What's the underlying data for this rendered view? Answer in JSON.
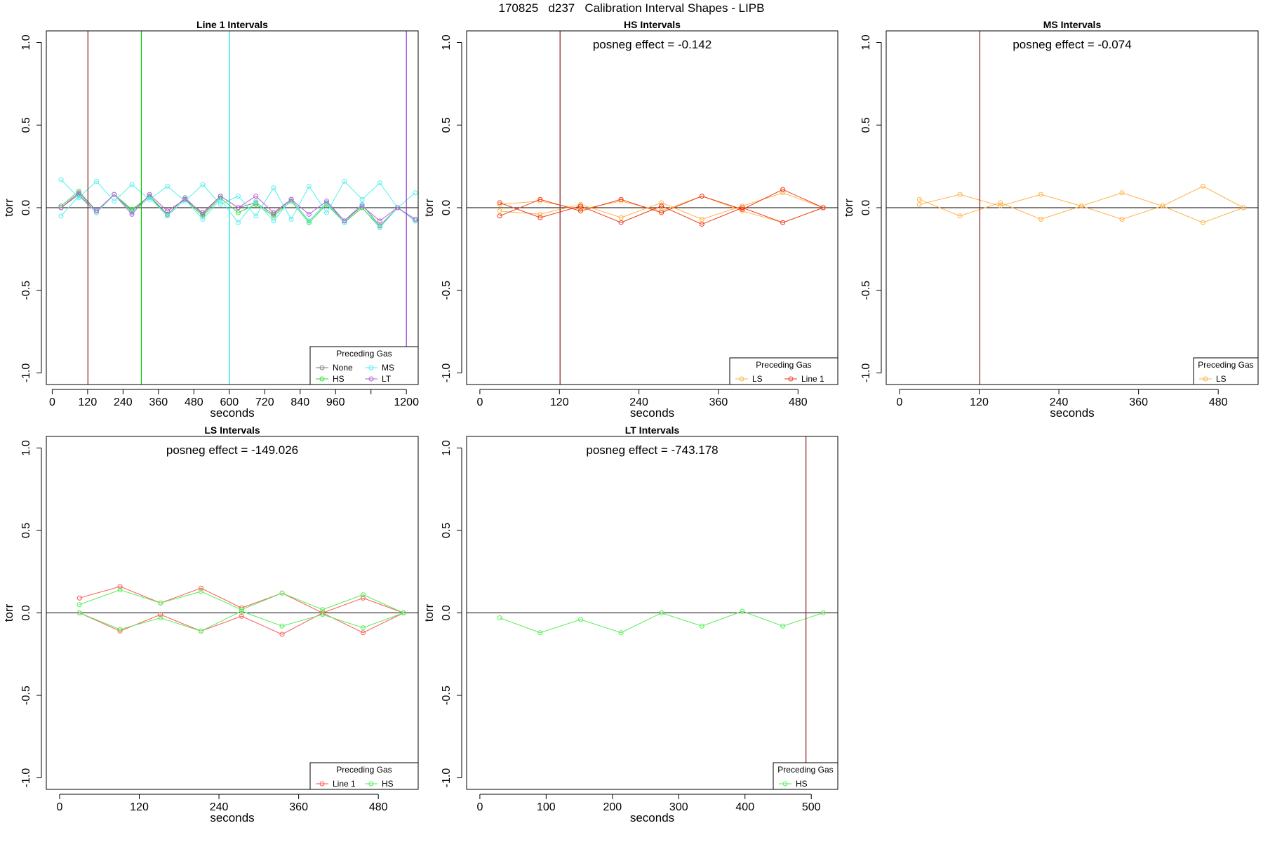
{
  "page_title": "170825   d237   Calibration Interval Shapes - LIPB",
  "chart_data": [
    {
      "type": "line",
      "title": "Line 1 Intervals",
      "annotation": "",
      "xlabel": "seconds",
      "ylabel": "torr",
      "xlim": [
        -20,
        1240
      ],
      "ylim": [
        -1.07,
        1.07
      ],
      "xticks": [
        0,
        120,
        240,
        360,
        480,
        600,
        720,
        840,
        960,
        1080,
        1200
      ],
      "xticklabels": [
        "0",
        "120",
        "240",
        "360",
        "480",
        "600",
        "720",
        "840",
        "960",
        "",
        "1200"
      ],
      "yticks": [
        -1.0,
        -0.5,
        0.0,
        0.5,
        1.0
      ],
      "yticklabels": [
        "-1.0",
        "-0.5",
        "0.0",
        "0.5",
        "1.0"
      ],
      "vlines": [
        {
          "x": 121,
          "color": "#8b1a1a"
        },
        {
          "x": 302,
          "color": "#00cc00"
        },
        {
          "x": 601,
          "color": "#00e5e5"
        },
        {
          "x": 1200,
          "color": "#9a32cd"
        }
      ],
      "legend": {
        "title": "Preceding Gas",
        "position": "bottom-right",
        "columns": 2,
        "entries": [
          "None",
          "MS",
          "HS",
          "LT"
        ]
      },
      "series": [
        {
          "name": "None",
          "color": "#7f7f7f",
          "x": [
            30,
            90,
            150,
            210,
            270,
            330,
            390,
            450,
            510,
            570,
            630,
            690,
            750,
            810,
            870,
            930,
            990,
            1050,
            1110,
            1170,
            1230
          ],
          "y": [
            0.0,
            0.08,
            -0.03,
            0.08,
            -0.02,
            0.07,
            -0.04,
            0.06,
            -0.04,
            0.07,
            0.0,
            0.03,
            -0.04,
            0.05,
            -0.08,
            0.03,
            -0.08,
            0.02,
            -0.11,
            0.0,
            -0.08
          ]
        },
        {
          "name": "HS",
          "color": "#33dd33",
          "x": [
            30,
            90,
            150,
            210,
            270,
            330,
            390,
            450,
            510,
            570,
            630,
            690,
            750,
            810,
            870,
            930,
            990,
            1050,
            1110,
            1170,
            1230
          ],
          "y": [
            0.01,
            0.1,
            -0.02,
            0.08,
            -0.01,
            0.07,
            -0.05,
            0.05,
            -0.05,
            0.06,
            -0.03,
            0.02,
            -0.05,
            0.04,
            -0.09,
            0.02,
            -0.09,
            0.0,
            -0.12,
            0.0,
            -0.07
          ]
        },
        {
          "name": "MS",
          "color": "#55eeee",
          "x": [
            30,
            90,
            150,
            210,
            270,
            330,
            390,
            450,
            510,
            570,
            630,
            690,
            750,
            810,
            870,
            930,
            990,
            1050,
            1110,
            1170,
            1230
          ],
          "y": [
            0.17,
            0.06,
            0.16,
            0.04,
            0.14,
            0.05,
            0.13,
            0.04,
            0.14,
            0.02,
            0.07,
            -0.05,
            0.12,
            -0.07,
            0.13,
            -0.03,
            0.16,
            0.05,
            0.15,
            0.0,
            0.09
          ]
        },
        {
          "name": "MS",
          "color": "#55eeee",
          "x": [
            30,
            90,
            150,
            210,
            270,
            330,
            390,
            450,
            510,
            570,
            630,
            690,
            750,
            810,
            870,
            930,
            990,
            1050,
            1110,
            1170,
            1230
          ],
          "y": [
            -0.05,
            0.07,
            -0.03,
            0.08,
            -0.03,
            0.06,
            -0.05,
            0.05,
            -0.07,
            0.05,
            -0.09,
            0.04,
            -0.08,
            0.05,
            -0.08,
            0.03,
            -0.09,
            0.02,
            -0.12,
            0.0,
            -0.08
          ]
        },
        {
          "name": "LT",
          "color": "#b85fd8",
          "x": [
            30,
            90,
            150,
            210,
            270,
            330,
            390,
            450,
            510,
            570,
            630,
            690,
            750,
            810,
            870,
            930,
            990,
            1050,
            1110,
            1170,
            1230
          ],
          "y": [
            0.0,
            0.09,
            -0.02,
            0.08,
            -0.04,
            0.08,
            -0.02,
            0.05,
            -0.03,
            0.07,
            0.0,
            0.07,
            -0.03,
            0.05,
            -0.04,
            0.04,
            -0.08,
            0.01,
            -0.08,
            0.0,
            -0.07
          ]
        }
      ]
    },
    {
      "type": "line",
      "title": "HS Intervals",
      "annotation": "posneg effect = -0.142",
      "xlabel": "seconds",
      "ylabel": "torr",
      "xlim": [
        -20,
        540
      ],
      "ylim": [
        -1.07,
        1.07
      ],
      "xticks": [
        0,
        120,
        240,
        360,
        480
      ],
      "xticklabels": [
        "0",
        "120",
        "240",
        "360",
        "480"
      ],
      "yticks": [
        -1.0,
        -0.5,
        0.0,
        0.5,
        1.0
      ],
      "yticklabels": [
        "-1.0",
        "-0.5",
        "0.0",
        "0.5",
        "1.0"
      ],
      "vlines": [
        {
          "x": 121,
          "color": "#8b1a1a"
        }
      ],
      "legend": {
        "title": "Preceding Gas",
        "position": "bottom-right",
        "columns": 2,
        "entries": [
          "LS",
          "Line 1"
        ]
      },
      "series": [
        {
          "name": "LS",
          "color": "#ffb347",
          "x": [
            30,
            91,
            152,
            213,
            274,
            335,
            396,
            457,
            518
          ],
          "y": [
            -0.02,
            -0.04,
            0.02,
            -0.06,
            0.03,
            -0.07,
            0.01,
            0.09,
            0.0
          ]
        },
        {
          "name": "LS",
          "color": "#ffb347",
          "x": [
            30,
            91,
            152,
            213,
            274,
            335,
            396,
            457,
            518
          ],
          "y": [
            0.02,
            0.04,
            -0.01,
            0.04,
            -0.02,
            0.07,
            -0.02,
            -0.09,
            0.0
          ]
        },
        {
          "name": "Line 1",
          "color": "#ee3b1e",
          "x": [
            30,
            91,
            152,
            213,
            274,
            335,
            396,
            457,
            518
          ],
          "y": [
            -0.05,
            0.05,
            -0.02,
            0.05,
            -0.03,
            0.07,
            -0.01,
            0.11,
            0.0
          ]
        },
        {
          "name": "Line 1",
          "color": "#ee3b1e",
          "x": [
            30,
            91,
            152,
            213,
            274,
            335,
            396,
            457,
            518
          ],
          "y": [
            0.03,
            -0.06,
            0.01,
            -0.09,
            0.01,
            -0.1,
            0.0,
            -0.09,
            0.0
          ]
        }
      ]
    },
    {
      "type": "line",
      "title": "MS Intervals",
      "annotation": "posneg effect = -0.074",
      "xlabel": "seconds",
      "ylabel": "torr",
      "xlim": [
        -20,
        540
      ],
      "ylim": [
        -1.07,
        1.07
      ],
      "xticks": [
        0,
        120,
        240,
        360,
        480
      ],
      "xticklabels": [
        "0",
        "120",
        "240",
        "360",
        "480"
      ],
      "yticks": [
        -1.0,
        -0.5,
        0.0,
        0.5,
        1.0
      ],
      "yticklabels": [
        "-1.0",
        "-0.5",
        "0.0",
        "0.5",
        "1.0"
      ],
      "vlines": [
        {
          "x": 121,
          "color": "#8b1a1a"
        }
      ],
      "legend": {
        "title": "Preceding Gas",
        "position": "bottom-right",
        "columns": 1,
        "entries": [
          "LS"
        ]
      },
      "series": [
        {
          "name": "LS",
          "color": "#ffb347",
          "x": [
            30,
            91,
            152,
            213,
            274,
            335,
            396,
            457,
            518
          ],
          "y": [
            0.05,
            -0.05,
            0.03,
            -0.07,
            0.01,
            -0.07,
            0.01,
            -0.09,
            0.0
          ]
        },
        {
          "name": "LS",
          "color": "#ffb347",
          "x": [
            30,
            91,
            152,
            213,
            274,
            335,
            396,
            457,
            518
          ],
          "y": [
            0.02,
            0.08,
            0.01,
            0.08,
            0.01,
            0.09,
            0.01,
            0.13,
            0.0
          ]
        }
      ]
    },
    {
      "type": "line",
      "title": "LS Intervals",
      "annotation": "posneg effect = -149.026",
      "xlabel": "seconds",
      "ylabel": "torr",
      "xlim": [
        -20,
        540
      ],
      "ylim": [
        -1.07,
        1.07
      ],
      "xticks": [
        0,
        120,
        240,
        360,
        480
      ],
      "xticklabels": [
        "0",
        "120",
        "240",
        "360",
        "480"
      ],
      "yticks": [
        -1.0,
        -0.5,
        0.0,
        0.5,
        1.0
      ],
      "yticklabels": [
        "-1.0",
        "-0.5",
        "0.0",
        "0.5",
        "1.0"
      ],
      "vlines": [],
      "legend": {
        "title": "Preceding Gas",
        "position": "bottom-right",
        "columns": 2,
        "entries": [
          "Line 1",
          "HS"
        ]
      },
      "series": [
        {
          "name": "Line 1",
          "color": "#ff5555",
          "x": [
            30,
            91,
            152,
            213,
            274,
            335,
            396,
            457,
            518
          ],
          "y": [
            0.09,
            0.16,
            0.06,
            0.15,
            0.03,
            0.12,
            0.0,
            0.09,
            0.0
          ]
        },
        {
          "name": "Line 1",
          "color": "#ff5555",
          "x": [
            30,
            91,
            152,
            213,
            274,
            335,
            396,
            457,
            518
          ],
          "y": [
            0.0,
            -0.11,
            -0.01,
            -0.11,
            -0.02,
            -0.13,
            0.0,
            -0.12,
            0.0
          ]
        },
        {
          "name": "HS",
          "color": "#55ee55",
          "x": [
            30,
            91,
            152,
            213,
            274,
            335,
            396,
            457,
            518
          ],
          "y": [
            0.05,
            0.14,
            0.06,
            0.13,
            0.02,
            0.12,
            0.02,
            0.11,
            0.0
          ]
        },
        {
          "name": "HS",
          "color": "#55ee55",
          "x": [
            30,
            91,
            152,
            213,
            274,
            335,
            396,
            457,
            518
          ],
          "y": [
            0.0,
            -0.1,
            -0.03,
            -0.11,
            0.01,
            -0.08,
            -0.01,
            -0.09,
            0.0
          ]
        }
      ]
    },
    {
      "type": "line",
      "title": "LT Intervals",
      "annotation": "posneg effect = -743.178",
      "xlabel": "seconds",
      "ylabel": "torr",
      "xlim": [
        -20,
        540
      ],
      "ylim": [
        -1.07,
        1.07
      ],
      "xticks": [
        0,
        100,
        200,
        300,
        400,
        500
      ],
      "xticklabels": [
        "0",
        "100",
        "200",
        "300",
        "400",
        "500"
      ],
      "yticks": [
        -1.0,
        -0.5,
        0.0,
        0.5,
        1.0
      ],
      "yticklabels": [
        "-1.0",
        "-0.5",
        "0.0",
        "0.5",
        "1.0"
      ],
      "vlines": [
        {
          "x": 492,
          "color": "#8b1a1a"
        }
      ],
      "legend": {
        "title": "Preceding Gas",
        "position": "bottom-right",
        "columns": 1,
        "entries": [
          "HS"
        ]
      },
      "series": [
        {
          "name": "HS",
          "color": "#55ee55",
          "x": [
            30,
            91,
            152,
            213,
            274,
            335,
            396,
            457,
            518
          ],
          "y": [
            -0.03,
            -0.12,
            -0.04,
            -0.12,
            0.0,
            -0.08,
            0.01,
            -0.08,
            0.0
          ]
        }
      ]
    }
  ]
}
